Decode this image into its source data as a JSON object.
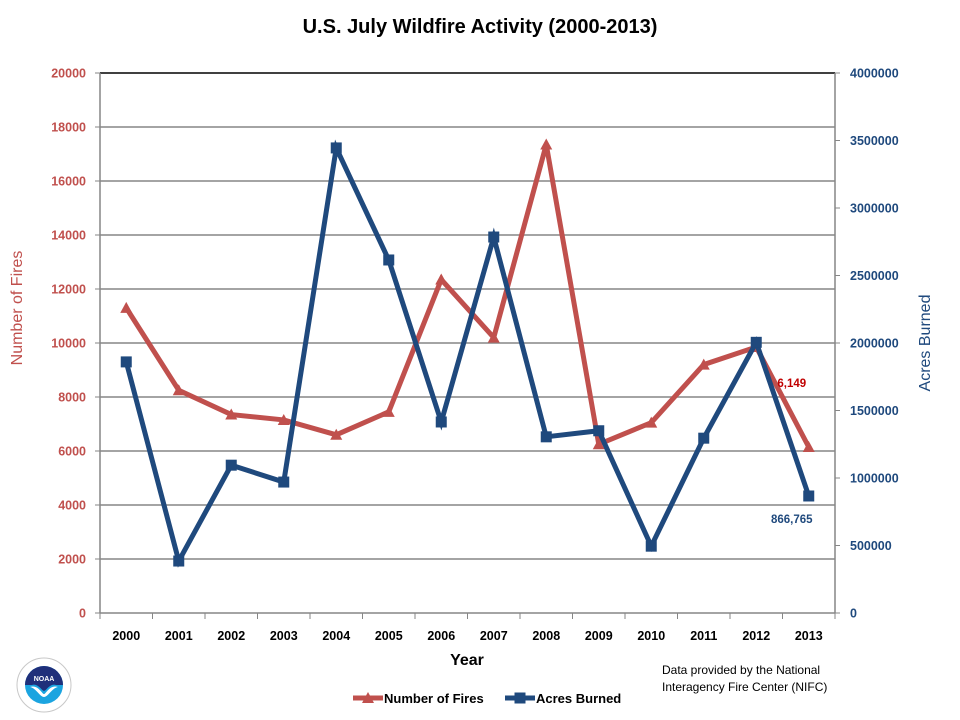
{
  "chart_data": {
    "type": "line",
    "title": "U.S. July Wildfire Activity (2000-2013)",
    "xlabel": "Year",
    "ylabel": "Number of Fires",
    "y2label": "Acres Burned",
    "categories": [
      "2000",
      "2001",
      "2002",
      "2003",
      "2004",
      "2005",
      "2006",
      "2007",
      "2008",
      "2009",
      "2010",
      "2011",
      "2012",
      "2013"
    ],
    "ylim": [
      0,
      20000
    ],
    "y_ticks": [
      0,
      2000,
      4000,
      6000,
      8000,
      10000,
      12000,
      14000,
      16000,
      18000,
      20000
    ],
    "y2lim": [
      0,
      4000000
    ],
    "y2_ticks": [
      0,
      500000,
      1000000,
      1500000,
      2000000,
      2500000,
      3000000,
      3500000,
      4000000
    ],
    "grid": true,
    "legend_position": "bottom",
    "series": [
      {
        "name": "Number of Fires",
        "axis": "left",
        "color": "#c0504d",
        "marker": "triangle",
        "values": [
          11300,
          8250,
          7350,
          7150,
          6600,
          7450,
          12350,
          10200,
          17350,
          6250,
          7050,
          9200,
          9850,
          6149
        ]
      },
      {
        "name": "Acres Burned",
        "axis": "right",
        "color": "#1f497d",
        "marker": "square",
        "values": [
          1860000,
          385000,
          1095000,
          970000,
          3445000,
          2615000,
          1415000,
          2785000,
          1305000,
          1350000,
          495000,
          1295000,
          2005000,
          866765
        ]
      }
    ],
    "annotations": [
      {
        "series": "Number of Fires",
        "category": "2013",
        "text": "6,149"
      },
      {
        "series": "Acres Burned",
        "category": "2013",
        "text": "866,765"
      }
    ]
  },
  "footer": {
    "source_line1": "Data provided  by the National",
    "source_line2": "Interagency Fire Center (NIFC)",
    "logo_text": "NOAA"
  }
}
